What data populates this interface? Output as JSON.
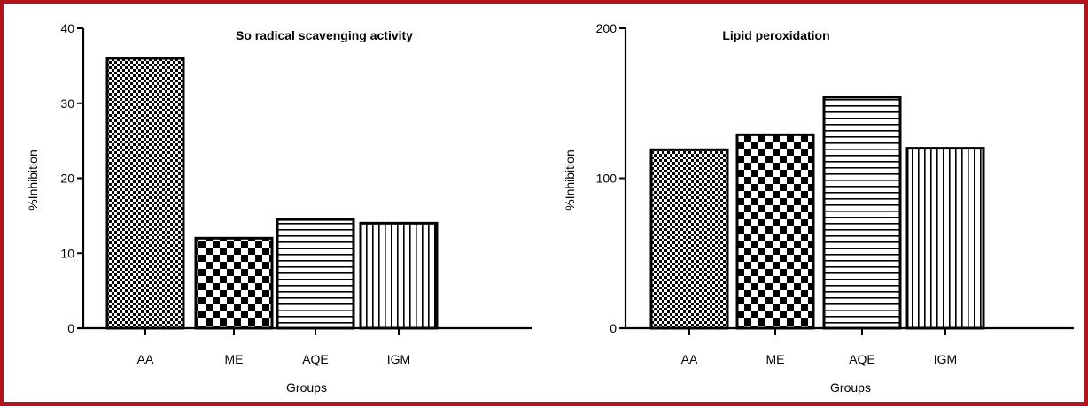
{
  "chart_data": [
    {
      "type": "bar",
      "title": "So radical scavenging activity",
      "xlabel": "Groups",
      "ylabel": "%Inhibition",
      "categories": [
        "AA",
        "ME",
        "AQE",
        "IGM"
      ],
      "values": [
        36,
        12,
        14.5,
        14
      ],
      "ylim": [
        0,
        40
      ],
      "yticks": [
        "0",
        "10",
        "20",
        "30",
        "40"
      ],
      "grid": false,
      "patterns": [
        "fine-checker",
        "coarse-checker",
        "horizontal-lines",
        "vertical-lines"
      ]
    },
    {
      "type": "bar",
      "title": "Lipid peroxidation",
      "xlabel": "Groups",
      "ylabel": "%Inhibition",
      "categories": [
        "AA",
        "ME",
        "AQE",
        "IGM"
      ],
      "values": [
        119,
        129,
        154,
        120
      ],
      "ylim": [
        0,
        200
      ],
      "yticks": [
        "0",
        "100",
        "200"
      ],
      "grid": false,
      "patterns": [
        "fine-checker",
        "coarse-checker",
        "horizontal-lines",
        "vertical-lines"
      ]
    }
  ],
  "colors": {
    "border": "#b0141c",
    "ink": "#000000"
  }
}
